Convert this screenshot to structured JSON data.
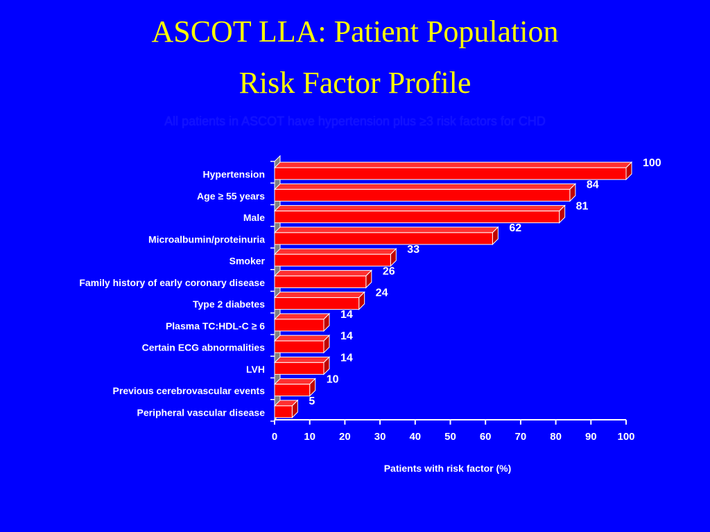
{
  "slide": {
    "title_line1": "ASCOT LLA: Patient Population",
    "title_line2": "Risk Factor Profile",
    "subtitle": "All patients in ASCOT have hypertension plus ≥3 risk factors for CHD",
    "background_color": "#0000ff",
    "title_color": "#ffff00"
  },
  "chart_data": {
    "type": "bar",
    "orientation": "horizontal",
    "categories": [
      "Hypertension",
      "Age ≥ 55 years",
      "Male",
      "Microalbumin/proteinuria",
      "Smoker",
      "Family history of early coronary disease",
      "Type 2 diabetes",
      "Plasma TC:HDL-C ≥ 6",
      "Certain ECG abnormalities",
      "LVH",
      "Previous cerebrovascular events",
      "Peripheral vascular disease"
    ],
    "values": [
      100,
      84,
      81,
      62,
      33,
      26,
      24,
      14,
      14,
      14,
      10,
      5
    ],
    "value_labels": [
      "100",
      "84",
      "81",
      "62",
      "33",
      "26",
      "24",
      "14",
      "14",
      "14",
      "10",
      "5"
    ],
    "xlabel": "Patients with risk factor (%)",
    "ylabel": "",
    "xlim": [
      0,
      100
    ],
    "xticks": [
      0,
      10,
      20,
      30,
      40,
      50,
      60,
      70,
      80,
      90,
      100
    ],
    "xtick_labels": [
      "0",
      "10",
      "20",
      "30",
      "40",
      "50",
      "60",
      "70",
      "80",
      "90",
      "100"
    ],
    "grid": false,
    "style": "3d",
    "bar_color": "#ff0000",
    "bar_edge_color": "#ffffff",
    "wall_color": "#808080"
  }
}
